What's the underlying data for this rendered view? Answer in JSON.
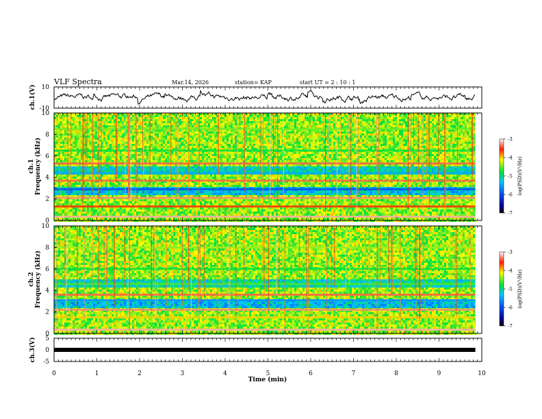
{
  "header": {
    "title": "VLF Spectra",
    "date": "Mar.14, 2026",
    "station": "station= KAP",
    "start_ut": "start  UT =   2 : 10 : 1"
  },
  "colors": {
    "axis": "#000000",
    "trace": "#000000"
  },
  "chart_data": [
    {
      "type": "line",
      "name": "ch1-waveform",
      "ylabel": "ch.1(V)",
      "ylim": [
        -10,
        10
      ],
      "yticks": [
        "10",
        "-10"
      ],
      "xlim": [
        0,
        10
      ],
      "x_end": 9.85,
      "y_note": "signal oscillates roughly between -6 and +6 V"
    },
    {
      "type": "heatmap",
      "name": "ch1-spectrogram",
      "ylabel_top": "ch.1",
      "ylabel": "Frequency (kHz)",
      "ylim": [
        0,
        10
      ],
      "yticks": [
        "0",
        "2",
        "4",
        "6",
        "8",
        "10"
      ],
      "xlim": [
        0,
        10
      ],
      "x_end": 9.85,
      "colorbar": {
        "label": "log(PSD)(V²/Hz)",
        "range": [
          -7,
          -3
        ],
        "ticks": [
          "-3",
          "-4",
          "-5",
          "-6",
          "-7"
        ]
      },
      "bands_khz": [
        {
          "f": 0.35,
          "level": -3.2
        },
        {
          "f": 1.3,
          "level": -3.6
        },
        {
          "f": 2.1,
          "level": -3.3
        },
        {
          "f": 2.9,
          "level": -6.0
        },
        {
          "f": 3.7,
          "level": -3.4
        },
        {
          "f": 4.4,
          "level": -5.5
        },
        {
          "f": 5.3,
          "level": -3.4
        },
        {
          "f": 6.5,
          "level": -4.8
        },
        {
          "f": 8.5,
          "level": -4.5
        }
      ]
    },
    {
      "type": "heatmap",
      "name": "ch2-spectrogram",
      "ylabel_top": "ch.2",
      "ylabel": "Frequency (kHz)",
      "ylim": [
        0,
        10
      ],
      "yticks": [
        "0",
        "2",
        "4",
        "6",
        "8",
        "10"
      ],
      "xlim": [
        0,
        10
      ],
      "x_end": 9.85,
      "colorbar": {
        "label": "log(PSD)(V²/Hz)",
        "range": [
          -7,
          -3
        ],
        "ticks": [
          "-3",
          "-4",
          "-5",
          "-6",
          "-7"
        ]
      },
      "bands_khz": [
        {
          "f": 0.35,
          "level": -3.2
        },
        {
          "f": 1.5,
          "level": -4.0
        },
        {
          "f": 2.2,
          "level": -3.3
        },
        {
          "f": 3.1,
          "level": -5.6
        },
        {
          "f": 3.6,
          "level": -3.4
        },
        {
          "f": 4.6,
          "level": -4.6
        },
        {
          "f": 6.0,
          "level": -4.8
        },
        {
          "f": 8.0,
          "level": -4.4
        }
      ]
    },
    {
      "type": "line",
      "name": "ch3-waveform",
      "ylabel": "ch.3(V)",
      "ylim": [
        -5,
        5
      ],
      "yticks": [
        "5",
        "0",
        "-5"
      ],
      "xlim": [
        0,
        10
      ],
      "x_end": 9.85,
      "level": 0
    }
  ],
  "xaxis": {
    "label": "Time (min)",
    "ticks": [
      "0",
      "1",
      "2",
      "3",
      "4",
      "5",
      "6",
      "7",
      "8",
      "9",
      "10"
    ]
  }
}
